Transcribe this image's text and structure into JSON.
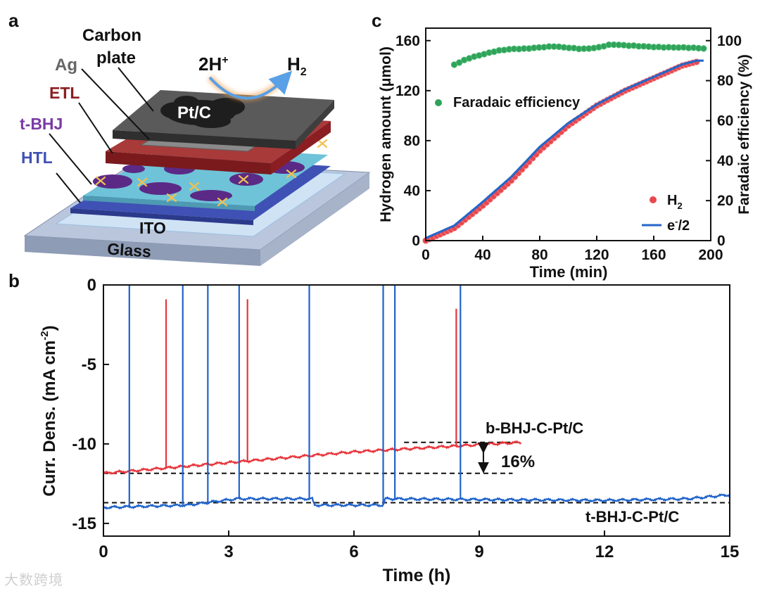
{
  "panel_labels": {
    "a": "a",
    "b": "b",
    "c": "c"
  },
  "diagram": {
    "labels": {
      "carbon_line1": "Carbon",
      "carbon_line2": "plate",
      "ag": "Ag",
      "etl": "ETL",
      "tbhj": "t-BHJ",
      "htl": "HTL",
      "ito": "ITO",
      "glass": "Glass",
      "ptc": "Pt/C",
      "reactant": "2H",
      "reactant_sup": "+",
      "product": "H",
      "product_sub": "2"
    },
    "colors": {
      "glass": "#b9c6dc",
      "ito": "#cfe3f5",
      "htl": "#3f51b5",
      "bhj_blue": "#6fc3d8",
      "bhj_purple": "#5b2a86",
      "etl": "#8b1e22",
      "ag": "#8a8a8a",
      "carbon": "#4a4a4a",
      "star": "#f2c14e"
    }
  },
  "chart_data": [
    {
      "id": "c",
      "type": "scatter",
      "xlabel": "Time (min)",
      "ylabel": "Hydrogen amount (μmol)",
      "ylabel_right": "Faradaic efficiency (%)",
      "xlim": [
        0,
        200
      ],
      "ylim": [
        0,
        170
      ],
      "ylim_right": [
        0,
        106.25
      ],
      "xticks": [
        "0",
        "40",
        "80",
        "120",
        "160",
        "200"
      ],
      "yticks": [
        "0",
        "40",
        "80",
        "120",
        "160"
      ],
      "yticks_right": [
        "0",
        "20",
        "40",
        "60",
        "80",
        "100"
      ],
      "legend": {
        "fe": "Faradaic efficiency",
        "h2": "H",
        "h2_sub": "2",
        "e": "e",
        "e_sup": "-",
        "e_tail": "/2"
      },
      "series": [
        {
          "name": "H2",
          "axis": "left",
          "marker": "circle",
          "color": "#e8474e",
          "x_start": 0,
          "x_end": 190,
          "x_step": 2.5,
          "curve_points": [
            [
              0,
              0
            ],
            [
              20,
              10
            ],
            [
              40,
              28
            ],
            [
              60,
              48
            ],
            [
              80,
              72
            ],
            [
              100,
              92
            ],
            [
              120,
              108
            ],
            [
              140,
              120
            ],
            [
              160,
              130
            ],
            [
              180,
              140
            ],
            [
              190,
              143
            ]
          ]
        },
        {
          "name": "e-/2",
          "axis": "left",
          "marker": "line",
          "color": "#2566c9",
          "curve_points": [
            [
              0,
              2
            ],
            [
              20,
              12
            ],
            [
              40,
              31
            ],
            [
              60,
              51
            ],
            [
              80,
              75
            ],
            [
              100,
              94
            ],
            [
              120,
              109
            ],
            [
              140,
              121
            ],
            [
              160,
              131
            ],
            [
              180,
              141
            ],
            [
              190,
              144
            ],
            [
              195,
              144
            ]
          ]
        },
        {
          "name": "Faradaic efficiency",
          "axis": "right",
          "marker": "circle",
          "color": "#2fa35a",
          "x_start": 20,
          "x_end": 195,
          "x_step": 3.5,
          "curve_points": [
            [
              20,
              88
            ],
            [
              30,
              91
            ],
            [
              40,
              93
            ],
            [
              50,
              95
            ],
            [
              60,
              96
            ],
            [
              70,
              96
            ],
            [
              80,
              96.5
            ],
            [
              90,
              97
            ],
            [
              100,
              96.5
            ],
            [
              110,
              96
            ],
            [
              120,
              96.5
            ],
            [
              130,
              98
            ],
            [
              140,
              97.5
            ],
            [
              160,
              97
            ],
            [
              180,
              96.5
            ],
            [
              195,
              96
            ]
          ]
        }
      ]
    },
    {
      "id": "b",
      "type": "line",
      "xlabel": "Time (h)",
      "ylabel": "Curr. Dens. (mA cm",
      "ylabel_sup": "-2",
      "ylabel_tail": ")",
      "xlim": [
        0,
        15
      ],
      "ylim": [
        -15.8,
        0
      ],
      "xticks": [
        "0",
        "3",
        "6",
        "9",
        "12",
        "15"
      ],
      "yticks": [
        "0",
        "-5",
        "-10",
        "-15"
      ],
      "annotations": {
        "b_label": "b-BHJ-C-Pt/C",
        "t_label": "t-BHJ-C-Pt/C",
        "percent": "16%"
      },
      "reference_lines": {
        "b_start": -11.85,
        "b_end": -9.9,
        "t_level": -13.7
      },
      "series": [
        {
          "name": "b-BHJ-C-Pt/C",
          "color": "#e8353b",
          "x_end": 10.0,
          "trend": [
            [
              0,
              -11.85
            ],
            [
              2,
              -11.4
            ],
            [
              4,
              -10.95
            ],
            [
              6,
              -10.5
            ],
            [
              8,
              -10.2
            ],
            [
              10,
              -9.9
            ]
          ],
          "spikes": [
            [
              1.5,
              -0.9
            ],
            [
              3.45,
              -0.9
            ],
            [
              8.45,
              -1.5
            ]
          ]
        },
        {
          "name": "t-BHJ-C-Pt/C",
          "color": "#1f63c9",
          "x_end": 15.0,
          "trend": [
            [
              0,
              -14.0
            ],
            [
              2,
              -13.85
            ],
            [
              3.2,
              -13.45
            ],
            [
              5,
              -13.45
            ],
            [
              5.05,
              -13.85
            ],
            [
              6.7,
              -13.85
            ],
            [
              6.75,
              -13.45
            ],
            [
              9,
              -13.5
            ],
            [
              12,
              -13.55
            ],
            [
              14,
              -13.45
            ],
            [
              15,
              -13.2
            ]
          ],
          "spikes": [
            [
              0.62,
              0
            ],
            [
              1.9,
              0
            ],
            [
              2.5,
              0
            ],
            [
              3.25,
              0
            ],
            [
              4.93,
              0
            ],
            [
              6.7,
              0
            ],
            [
              6.98,
              0
            ],
            [
              8.55,
              0
            ]
          ]
        }
      ]
    }
  ],
  "watermark": "大数跨境"
}
